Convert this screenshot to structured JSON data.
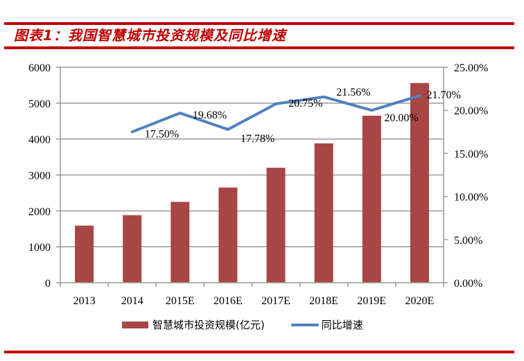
{
  "figure": {
    "title": "图表1：我国智慧城市投资规模及同比增速"
  },
  "colors": {
    "rule": "#c00000",
    "bar": "#a84646",
    "line": "#4f81bd",
    "grid": "#999999"
  },
  "chart_data": {
    "type": "bar",
    "title": "我国智慧城市投资规模及同比增速",
    "xlabel": "",
    "ylabel": "",
    "categories": [
      "2013",
      "2014",
      "2015E",
      "2016E",
      "2017E",
      "2018E",
      "2019E",
      "2020E"
    ],
    "series": [
      {
        "name": "智慧城市投资规模(亿元)",
        "type": "bar",
        "axis": "left",
        "values": [
          1590,
          1880,
          2250,
          2650,
          3200,
          3880,
          4650,
          5560
        ]
      },
      {
        "name": "同比增速",
        "type": "line",
        "axis": "right",
        "values": [
          null,
          17.5,
          19.68,
          17.78,
          20.75,
          21.56,
          20.0,
          21.7
        ],
        "labels": [
          "",
          "17.50%",
          "19.68%",
          "17.78%",
          "20.75%",
          "21.56%",
          "20.00%",
          "21.70%"
        ]
      }
    ],
    "ylim": [
      0,
      6000
    ],
    "yticks": [
      "0",
      "1000",
      "2000",
      "3000",
      "4000",
      "5000",
      "6000"
    ],
    "y2lim": [
      0,
      25
    ],
    "y2ticks": [
      "0.00%",
      "5.00%",
      "10.00%",
      "15.00%",
      "20.00%",
      "25.00%"
    ],
    "grid": true,
    "legend": {
      "position": "bottom",
      "entries": [
        "智慧城市投资规模(亿元)",
        "同比增速"
      ]
    }
  }
}
